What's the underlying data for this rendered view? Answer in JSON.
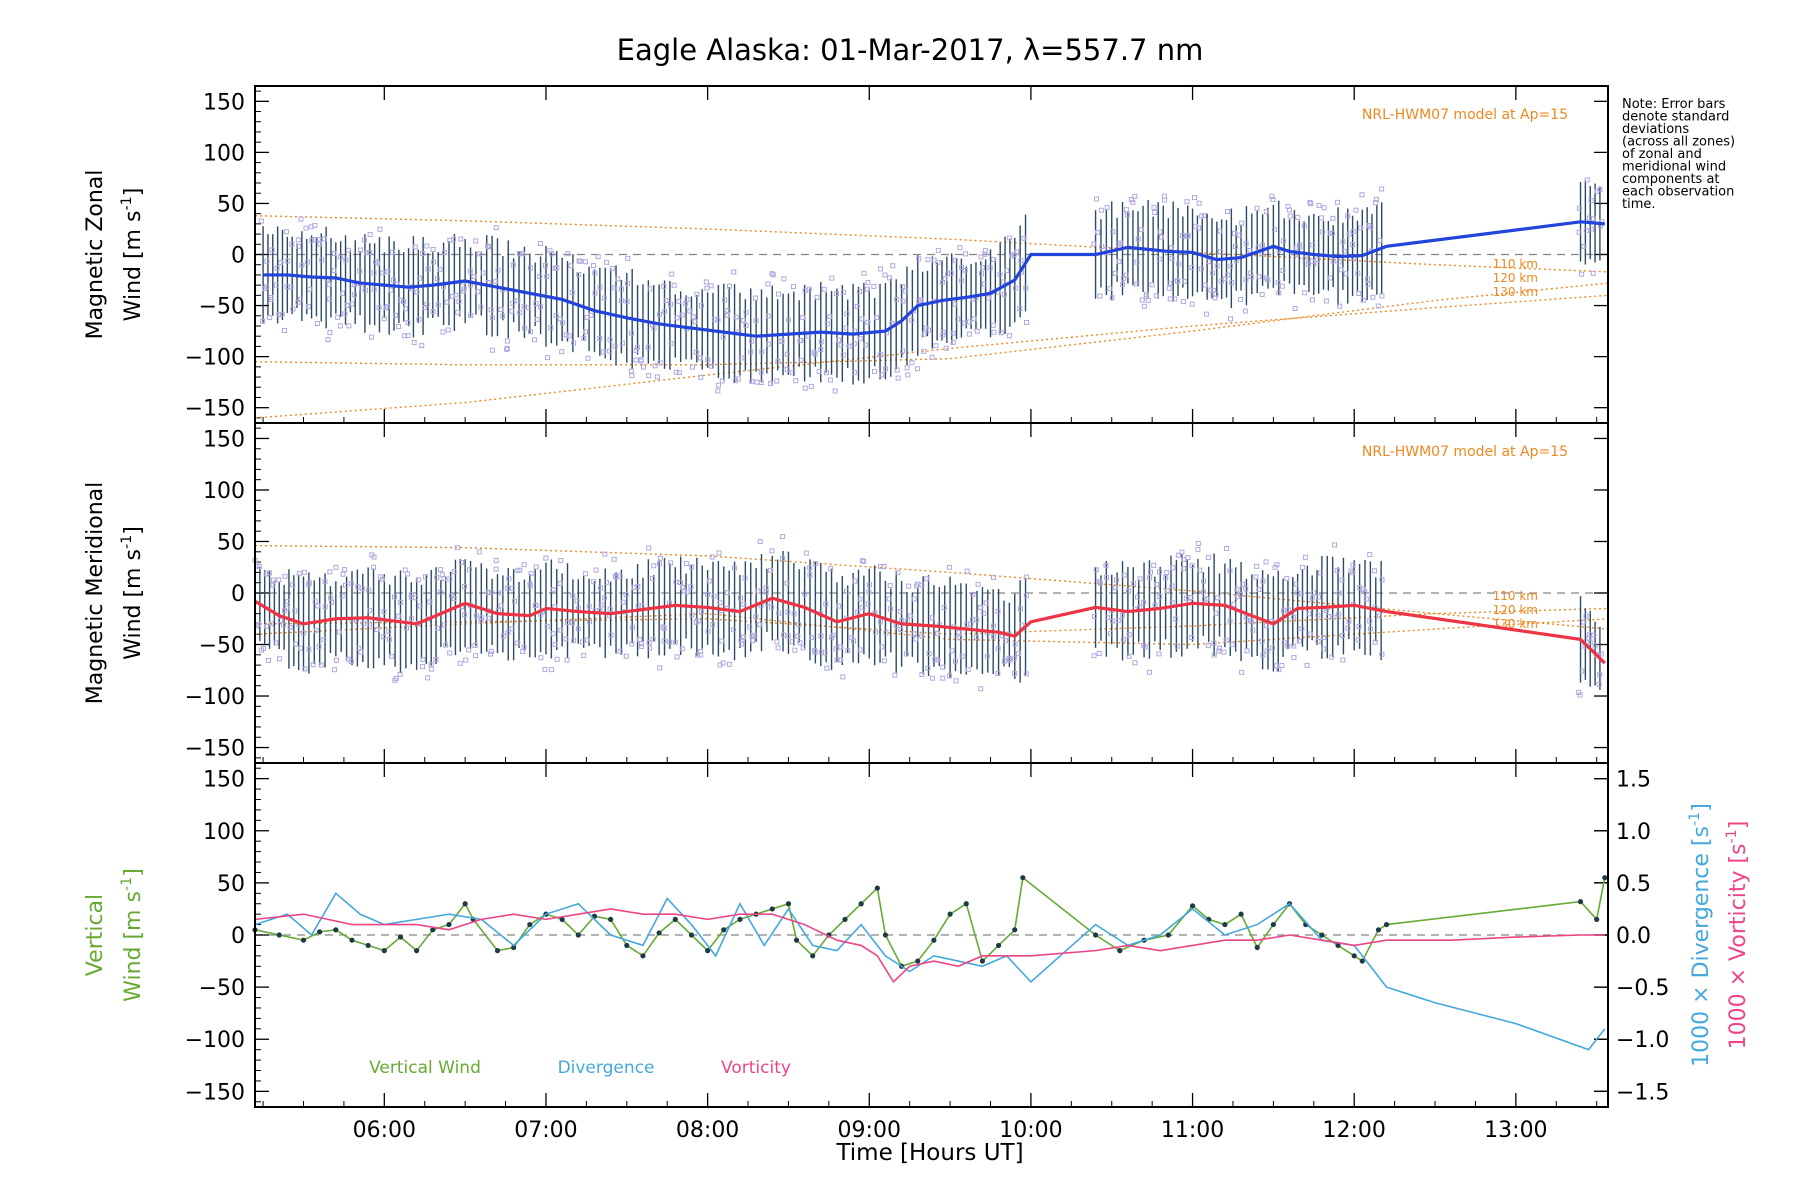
{
  "title": "Eagle Alaska: 01-Mar-2017, λ=557.7 nm",
  "note": [
    "Note: Error bars",
    "denote standard",
    "deviations",
    "(across all zones)",
    "of zonal and",
    "meridional wind",
    "components at",
    "each observation",
    "time."
  ],
  "x_axis": {
    "label": "Time [Hours UT]",
    "ticks": [
      "06:00",
      "07:00",
      "08:00",
      "09:00",
      "10:00",
      "11:00",
      "12:00",
      "13:00"
    ],
    "tick_values": [
      6,
      7,
      8,
      9,
      10,
      11,
      12,
      13
    ],
    "range": [
      5.2,
      13.57
    ]
  },
  "colors": {
    "zonal": "#2244dd",
    "meridional": "#ee3344",
    "vertical": "#66aa33",
    "divergence": "#44a8dd",
    "vorticity": "#ee4488",
    "model": "#ee8822",
    "sample": "#b0a8e0",
    "errorbar": "#2a4a66",
    "zero_line": "#888888"
  },
  "chart_data": [
    {
      "type": "line",
      "panel": "zonal",
      "ylabel_line1": "Magnetic Zonal",
      "ylabel_line2": "Wind [m s",
      "ylabel_unit_sup": "-1",
      "ylabel_close": "]",
      "ylim": [
        -165,
        165
      ],
      "yticks": [
        150,
        100,
        50,
        0,
        -50,
        -100,
        -150
      ],
      "model_label": "NRL-HWM07 model at Ap=15",
      "model_curve_labels": [
        "110 km",
        "120 km",
        "130 km"
      ],
      "series": [
        {
          "name": "Magnetic Zonal Wind",
          "x": [
            5.25,
            5.4,
            5.55,
            5.7,
            5.85,
            6.0,
            6.15,
            6.3,
            6.5,
            6.7,
            6.9,
            7.1,
            7.3,
            7.5,
            7.7,
            7.9,
            8.1,
            8.3,
            8.5,
            8.7,
            8.9,
            9.1,
            9.2,
            9.3,
            9.45,
            9.6,
            9.75,
            9.9,
            10.0,
            10.4,
            10.6,
            10.85,
            11.0,
            11.15,
            11.3,
            11.5,
            11.6,
            11.75,
            11.9,
            12.05,
            12.2,
            13.4,
            13.55
          ],
          "values": [
            -20,
            -20,
            -22,
            -23,
            -28,
            -30,
            -32,
            -30,
            -26,
            -32,
            -38,
            -44,
            -55,
            -62,
            -68,
            -72,
            -76,
            -80,
            -78,
            -76,
            -78,
            -75,
            -65,
            -50,
            -45,
            -42,
            -38,
            -25,
            0,
            0,
            7,
            3,
            2,
            -5,
            -3,
            8,
            3,
            0,
            -2,
            -1,
            8,
            32,
            30
          ]
        }
      ],
      "model_curves": [
        {
          "name": "110 km",
          "x": [
            5.2,
            6.5,
            8,
            9.5,
            11,
            12.5,
            13.57
          ],
          "values": [
            -105,
            -108,
            -108,
            -102,
            -75,
            -45,
            -28
          ]
        },
        {
          "name": "120 km",
          "x": [
            5.2,
            6.5,
            8,
            9.5,
            11,
            12.5,
            13.57
          ],
          "values": [
            -160,
            -145,
            -118,
            -92,
            -70,
            -52,
            -40
          ]
        },
        {
          "name": "130 km",
          "x": [
            5.2,
            6.5,
            8,
            9.5,
            11,
            12.5,
            13.57
          ],
          "values": [
            38,
            33,
            25,
            15,
            2,
            -10,
            -17
          ]
        }
      ]
    },
    {
      "type": "line",
      "panel": "meridional",
      "ylabel_line1": "Magnetic Meridional",
      "ylabel_line2": "Wind [m s",
      "ylabel_unit_sup": "-1",
      "ylabel_close": "]",
      "ylim": [
        -165,
        165
      ],
      "yticks": [
        150,
        100,
        50,
        0,
        -50,
        -100,
        -150
      ],
      "model_label": "NRL-HWM07 model at Ap=15",
      "model_curve_labels": [
        "110 km",
        "120 km",
        "130 km"
      ],
      "series": [
        {
          "name": "Magnetic Meridional Wind",
          "x": [
            5.2,
            5.35,
            5.5,
            5.7,
            5.9,
            6.1,
            6.2,
            6.35,
            6.5,
            6.7,
            6.9,
            7.0,
            7.2,
            7.4,
            7.6,
            7.8,
            8.0,
            8.2,
            8.4,
            8.6,
            8.8,
            9.0,
            9.2,
            9.4,
            9.6,
            9.8,
            9.9,
            10.0,
            10.4,
            10.6,
            10.8,
            11.0,
            11.2,
            11.4,
            11.5,
            11.65,
            11.8,
            12.0,
            12.2,
            13.4,
            13.55
          ],
          "values": [
            -8,
            -22,
            -30,
            -25,
            -24,
            -28,
            -30,
            -20,
            -10,
            -20,
            -22,
            -15,
            -18,
            -20,
            -16,
            -12,
            -14,
            -18,
            -5,
            -14,
            -28,
            -20,
            -30,
            -32,
            -35,
            -38,
            -42,
            -28,
            -14,
            -18,
            -15,
            -10,
            -12,
            -24,
            -30,
            -15,
            -14,
            -12,
            -18,
            -45,
            -68
          ]
        }
      ],
      "model_curves": [
        {
          "name": "110 km",
          "x": [
            5.2,
            6.5,
            8,
            9.5,
            11,
            12.5,
            13.57
          ],
          "values": [
            46,
            44,
            36,
            20,
            2,
            -20,
            -35
          ]
        },
        {
          "name": "120 km",
          "x": [
            5.2,
            6.5,
            8,
            9.5,
            11,
            12.5,
            13.57
          ],
          "values": [
            -30,
            -28,
            -25,
            -40,
            -32,
            -20,
            -15
          ]
        },
        {
          "name": "130 km",
          "x": [
            5.2,
            6.5,
            8,
            9.5,
            11,
            12.5,
            13.57
          ],
          "values": [
            -40,
            -30,
            -20,
            -45,
            -50,
            -35,
            -25
          ]
        }
      ]
    },
    {
      "type": "line",
      "panel": "vertical",
      "ylabel_line1": "Vertical",
      "ylabel_line2": "Wind [m s",
      "ylabel_unit_sup": "-1",
      "ylabel_close": "]",
      "ylim": [
        -165,
        165
      ],
      "yticks": [
        150,
        100,
        50,
        0,
        -50,
        -100,
        -150
      ],
      "y2label_div": "1000 × Divergence [s",
      "y2label_vor": "1000 × Vorticity [s",
      "y2label_sup": "-1",
      "y2label_close": "]",
      "y2lim": [
        -1.65,
        1.65
      ],
      "y2ticks": [
        1.5,
        1.0,
        0.5,
        0.0,
        -0.5,
        -1.0,
        -1.5
      ],
      "y2tick_labels": [
        "1.5",
        "1.0",
        "0.5",
        "0.0",
        "−0.5",
        "−1.0",
        "−1.5"
      ],
      "legend_labels": [
        "Vertical Wind",
        "Divergence",
        "Vorticity"
      ],
      "series": [
        {
          "name": "Vertical Wind",
          "axis": "left",
          "x": [
            5.2,
            5.35,
            5.5,
            5.6,
            5.7,
            5.8,
            5.9,
            6.0,
            6.1,
            6.2,
            6.3,
            6.4,
            6.5,
            6.55,
            6.7,
            6.8,
            6.9,
            7.0,
            7.1,
            7.2,
            7.3,
            7.4,
            7.5,
            7.6,
            7.7,
            7.8,
            7.9,
            8.0,
            8.1,
            8.2,
            8.3,
            8.4,
            8.5,
            8.55,
            8.65,
            8.75,
            8.85,
            8.95,
            9.05,
            9.1,
            9.2,
            9.3,
            9.4,
            9.5,
            9.6,
            9.7,
            9.8,
            9.9,
            9.95,
            10.4,
            10.55,
            10.7,
            10.85,
            11.0,
            11.1,
            11.2,
            11.3,
            11.4,
            11.5,
            11.6,
            11.7,
            11.8,
            11.9,
            12.0,
            12.05,
            12.15,
            12.2,
            13.4,
            13.5,
            13.55
          ],
          "values": [
            5,
            0,
            -5,
            3,
            5,
            -5,
            -10,
            -15,
            -2,
            -15,
            5,
            10,
            30,
            15,
            -15,
            -12,
            10,
            20,
            15,
            0,
            18,
            15,
            -10,
            -20,
            2,
            15,
            0,
            -15,
            5,
            15,
            20,
            25,
            30,
            -5,
            -20,
            0,
            15,
            30,
            45,
            0,
            -30,
            -25,
            -5,
            20,
            30,
            -25,
            -10,
            5,
            55,
            0,
            -15,
            -5,
            0,
            28,
            15,
            10,
            20,
            -12,
            10,
            30,
            10,
            0,
            -10,
            -20,
            -25,
            5,
            10,
            32,
            15,
            55
          ]
        },
        {
          "name": "Divergence",
          "axis": "right",
          "x": [
            5.2,
            5.4,
            5.55,
            5.7,
            5.85,
            6.0,
            6.2,
            6.4,
            6.6,
            6.8,
            7.0,
            7.2,
            7.4,
            7.6,
            7.75,
            7.9,
            8.05,
            8.2,
            8.35,
            8.5,
            8.65,
            8.8,
            8.95,
            9.1,
            9.25,
            9.4,
            9.55,
            9.7,
            9.85,
            10.0,
            10.4,
            10.6,
            10.8,
            11.0,
            11.2,
            11.4,
            11.6,
            11.8,
            12.0,
            12.1,
            12.2,
            12.5,
            13.0,
            13.45,
            13.55
          ],
          "values": [
            0.1,
            0.2,
            0.0,
            0.4,
            0.2,
            0.1,
            0.15,
            0.2,
            0.15,
            -0.1,
            0.2,
            0.3,
            0.0,
            -0.1,
            0.35,
            0.1,
            -0.2,
            0.3,
            -0.1,
            0.25,
            -0.1,
            -0.15,
            0.1,
            -0.2,
            -0.35,
            -0.2,
            -0.25,
            -0.3,
            -0.2,
            -0.45,
            0.1,
            -0.1,
            0.0,
            0.25,
            0.0,
            0.1,
            0.3,
            -0.05,
            -0.1,
            -0.3,
            -0.5,
            -0.65,
            -0.85,
            -1.1,
            -0.9
          ]
        },
        {
          "name": "Vorticity",
          "axis": "right",
          "x": [
            5.2,
            5.5,
            5.8,
            6.0,
            6.2,
            6.4,
            6.6,
            6.8,
            7.0,
            7.2,
            7.4,
            7.6,
            7.8,
            8.0,
            8.2,
            8.4,
            8.6,
            8.8,
            8.95,
            9.05,
            9.15,
            9.25,
            9.4,
            9.55,
            9.7,
            9.85,
            10.0,
            10.4,
            10.6,
            10.8,
            11.0,
            11.2,
            11.4,
            11.6,
            11.8,
            12.0,
            12.2,
            12.6,
            13.0,
            13.4,
            13.55
          ],
          "values": [
            0.15,
            0.2,
            0.1,
            0.1,
            0.1,
            0.05,
            0.15,
            0.2,
            0.15,
            0.2,
            0.25,
            0.2,
            0.2,
            0.15,
            0.2,
            0.2,
            0.1,
            -0.05,
            -0.1,
            -0.2,
            -0.45,
            -0.3,
            -0.25,
            -0.3,
            -0.2,
            -0.2,
            -0.2,
            -0.15,
            -0.1,
            -0.15,
            -0.1,
            -0.05,
            -0.05,
            0.0,
            -0.05,
            -0.1,
            -0.05,
            -0.05,
            -0.02,
            0.0,
            0.0
          ]
        }
      ]
    }
  ]
}
